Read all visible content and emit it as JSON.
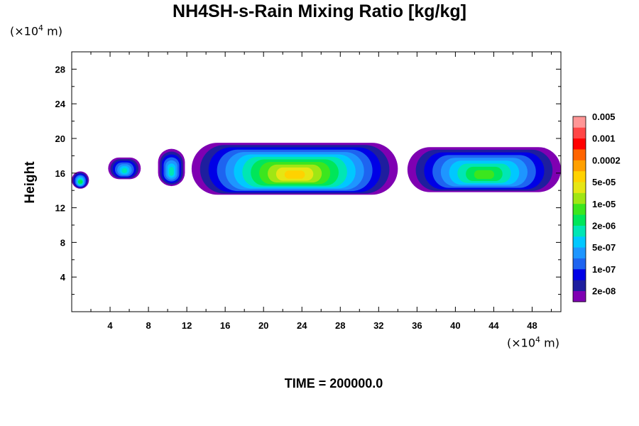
{
  "chart_data": {
    "type": "heatmap",
    "title": "NH4SH-s-Rain Mixing Ratio [kg/kg]",
    "xlabel": "",
    "ylabel": "Height",
    "x_unit": "(×10",
    "x_unit_exp": "4",
    "x_unit_tail": " m)",
    "y_unit": "(×10",
    "y_unit_exp": "4",
    "y_unit_tail": " m)",
    "xlim": [
      0,
      51
    ],
    "ylim": [
      0,
      30
    ],
    "x_ticks": [
      "4",
      "8",
      "12",
      "16",
      "20",
      "24",
      "28",
      "32",
      "36",
      "40",
      "44",
      "48"
    ],
    "y_ticks": [
      "4",
      "8",
      "12",
      "16",
      "20",
      "24",
      "28"
    ],
    "footer": "TIME = 200000.0",
    "colorbar": {
      "colors": [
        "#7f00b2",
        "#1e1e9e",
        "#0000e6",
        "#1e64f0",
        "#1e96ff",
        "#00c8ff",
        "#00e6b4",
        "#00e65a",
        "#3ce61e",
        "#a0e614",
        "#e6e614",
        "#ffd200",
        "#ffa000",
        "#ff6400",
        "#ff0000",
        "#ff4646",
        "#ff9696"
      ],
      "labels": [
        "2e-08",
        "1e-07",
        "5e-07",
        "2e-06",
        "1e-05",
        "5e-05",
        "0.0002",
        "0.001",
        "0.005"
      ]
    },
    "cloud_bands": [
      {
        "x": [
          0.0,
          1.8
        ],
        "y": [
          14.2,
          16.2
        ],
        "peak": 7
      },
      {
        "x": [
          3.8,
          7.2
        ],
        "y": [
          15.3,
          17.8
        ],
        "peak": 6
      },
      {
        "x": [
          9.0,
          11.8
        ],
        "y": [
          14.5,
          18.8
        ],
        "peak": 6
      },
      {
        "x": [
          12.5,
          34.0
        ],
        "y": [
          13.5,
          19.5
        ],
        "peak": 11
      },
      {
        "x": [
          35.0,
          51.0
        ],
        "y": [
          13.8,
          19.0
        ],
        "peak": 8
      }
    ]
  }
}
